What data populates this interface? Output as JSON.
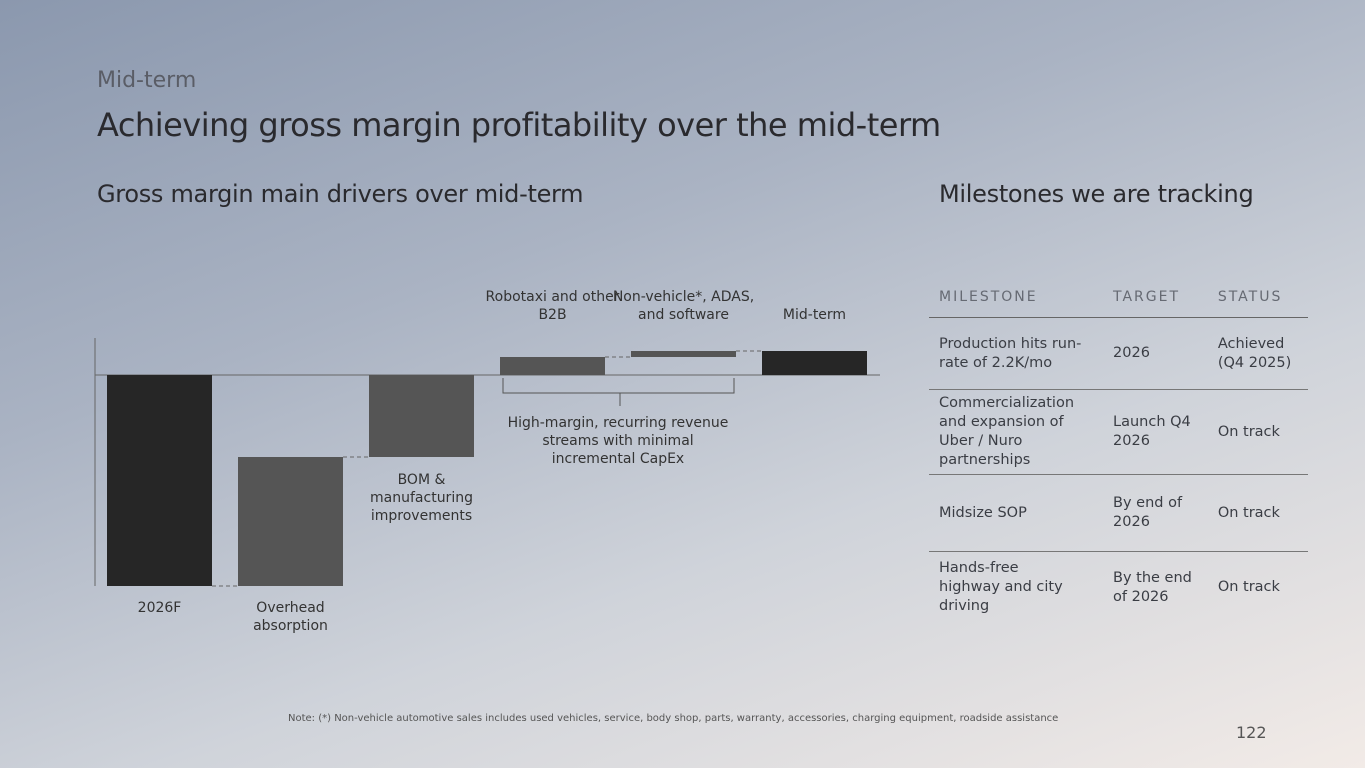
{
  "header": {
    "eyebrow": "Mid-term",
    "title": "Achieving gross margin profitability over the mid-term"
  },
  "chart_data": {
    "type": "waterfall",
    "title": "Gross margin main drivers over mid-term",
    "categories": [
      "2026F",
      "Overhead absorption",
      "BOM & manufacturing improvements",
      "Robotaxi and other B2B",
      "Non-vehicle*, ADAS, and software",
      "Mid-term"
    ],
    "values": [
      -21.1,
      12.9,
      8.2,
      1.8,
      0.6,
      2.4
    ],
    "colors": [
      "#262626",
      "#555555",
      "#555555",
      "#555555",
      "#555555",
      "#262626"
    ],
    "annotation": "High-margin, recurring revenue streams with minimal incremental CapEx"
  },
  "table": {
    "title": "Milestones we are tracking",
    "columns": [
      "MILESTONE",
      "TARGET",
      "STATUS"
    ],
    "rows": [
      [
        "Production hits run-rate of 2.2K/mo",
        "2026",
        "Achieved (Q4 2025)"
      ],
      [
        "Commercialization and expansion of Uber / Nuro partnerships",
        "Launch Q4 2026",
        "On track"
      ],
      [
        "Midsize SOP",
        "By end of 2026",
        "On track"
      ],
      [
        "Hands-free highway and city driving",
        "By the end of 2026",
        "On track"
      ]
    ]
  },
  "note": "Note: (*) Non-vehicle automotive sales includes used vehicles, service, body shop, parts, warranty, accessories, charging equipment, roadside assistance",
  "page_number": "122"
}
